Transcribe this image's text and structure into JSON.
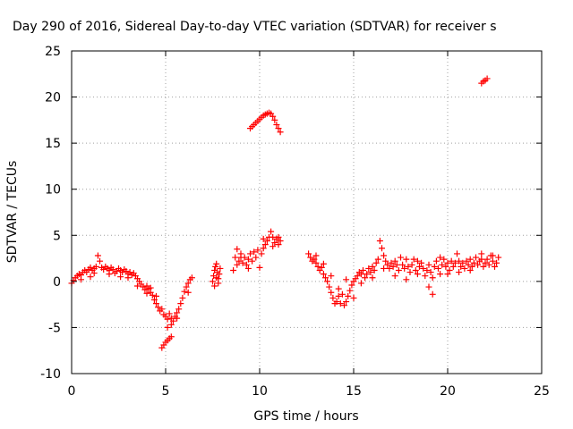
{
  "chart_data": {
    "type": "scatter",
    "title": "Day 290 of 2016, Sidereal Day-to-day VTEC variation (SDTVAR) for receiver s",
    "xlabel": "GPS time / hours",
    "ylabel": "SDTVAR / TECUs",
    "xlim": [
      0,
      25
    ],
    "ylim": [
      -10,
      25
    ],
    "xticks": [
      "0",
      "5",
      "10",
      "15",
      "20",
      "25"
    ],
    "yticks": [
      "-10",
      "-5",
      "0",
      "5",
      "10",
      "15",
      "20",
      "25"
    ],
    "grid": true,
    "legend": "none",
    "marker": "+",
    "color": "#ff0000",
    "series": [
      {
        "points": [
          [
            0.0,
            -0.2
          ],
          [
            0.1,
            0.1
          ],
          [
            0.2,
            0.4
          ],
          [
            0.3,
            0.6
          ],
          [
            0.4,
            0.8
          ],
          [
            0.5,
            0.7
          ],
          [
            0.6,
            1.0
          ],
          [
            0.7,
            1.2
          ],
          [
            0.8,
            1.0
          ],
          [
            0.9,
            1.3
          ],
          [
            1.0,
            1.5
          ],
          [
            1.1,
            1.2
          ],
          [
            1.2,
            1.4
          ],
          [
            1.3,
            1.6
          ],
          [
            1.4,
            2.8
          ],
          [
            1.5,
            2.2
          ],
          [
            1.6,
            1.5
          ],
          [
            1.7,
            1.3
          ],
          [
            1.8,
            1.6
          ],
          [
            1.9,
            1.4
          ],
          [
            2.0,
            1.2
          ],
          [
            2.1,
            1.5
          ],
          [
            2.2,
            1.3
          ],
          [
            2.3,
            0.9
          ],
          [
            2.4,
            1.1
          ],
          [
            2.5,
            1.4
          ],
          [
            2.6,
            1.2
          ],
          [
            2.7,
            1.0
          ],
          [
            2.8,
            1.3
          ],
          [
            2.9,
            1.1
          ],
          [
            3.0,
            0.8
          ],
          [
            3.1,
            1.0
          ],
          [
            3.2,
            0.7
          ],
          [
            3.3,
            0.9
          ],
          [
            3.4,
            0.6
          ],
          [
            3.5,
            0.3
          ],
          [
            3.6,
            0.0
          ],
          [
            3.7,
            -0.3
          ],
          [
            3.8,
            -0.6
          ],
          [
            3.9,
            -0.9
          ],
          [
            4.0,
            -0.5
          ],
          [
            4.1,
            -0.8
          ],
          [
            4.2,
            -1.2
          ],
          [
            4.3,
            -1.5
          ],
          [
            4.4,
            -2.0
          ],
          [
            4.5,
            -2.4
          ],
          [
            4.6,
            -2.8
          ],
          [
            4.7,
            -3.2
          ],
          [
            4.8,
            -3.0
          ],
          [
            4.9,
            -3.6
          ],
          [
            5.0,
            -3.8
          ],
          [
            5.1,
            -4.1
          ],
          [
            5.2,
            -3.5
          ],
          [
            5.3,
            -4.0
          ],
          [
            5.4,
            -4.3
          ],
          [
            5.5,
            -3.8
          ],
          [
            5.6,
            -3.4
          ],
          [
            5.7,
            -3.0
          ],
          [
            5.8,
            -2.4
          ],
          [
            5.9,
            -1.8
          ],
          [
            6.0,
            -1.1
          ],
          [
            6.1,
            -0.6
          ],
          [
            6.2,
            -0.2
          ],
          [
            6.3,
            0.2
          ],
          [
            6.4,
            0.4
          ],
          [
            5.1,
            -5.0
          ],
          [
            5.3,
            -4.7
          ],
          [
            0.5,
            0.2
          ],
          [
            1.0,
            0.5
          ],
          [
            2.0,
            0.8
          ],
          [
            3.0,
            0.4
          ],
          [
            4.2,
            -0.7
          ],
          [
            4.5,
            -1.6
          ],
          [
            1.2,
            0.9
          ],
          [
            2.6,
            0.5
          ],
          [
            3.5,
            -0.5
          ],
          [
            4.0,
            -1.3
          ],
          [
            5.6,
            -4.0
          ],
          [
            6.2,
            -1.2
          ]
        ]
      },
      {
        "points": [
          [
            4.8,
            -7.2
          ],
          [
            4.9,
            -6.9
          ],
          [
            5.0,
            -6.6
          ],
          [
            5.1,
            -6.4
          ],
          [
            5.2,
            -6.2
          ],
          [
            5.3,
            -6.0
          ]
        ]
      },
      {
        "points": [
          [
            7.5,
            0.0
          ],
          [
            7.55,
            0.6
          ],
          [
            7.6,
            1.2
          ],
          [
            7.65,
            1.6
          ],
          [
            7.7,
            0.4
          ],
          [
            7.75,
            1.0
          ],
          [
            7.8,
            -0.2
          ],
          [
            7.85,
            0.8
          ],
          [
            7.9,
            1.4
          ],
          [
            7.6,
            -0.5
          ],
          [
            7.7,
            1.9
          ],
          [
            7.8,
            0.3
          ]
        ]
      },
      {
        "points": [
          [
            8.6,
            1.2
          ],
          [
            8.7,
            2.6
          ],
          [
            8.8,
            3.5
          ],
          [
            8.9,
            2.2
          ],
          [
            9.0,
            3.0
          ],
          [
            9.1,
            2.0
          ],
          [
            9.2,
            2.6
          ],
          [
            9.3,
            1.8
          ],
          [
            9.4,
            2.4
          ],
          [
            9.5,
            3.0
          ],
          [
            9.6,
            2.2
          ],
          [
            9.7,
            3.2
          ],
          [
            9.8,
            2.6
          ],
          [
            9.9,
            3.4
          ],
          [
            10.0,
            1.5
          ],
          [
            10.1,
            3.0
          ],
          [
            10.2,
            3.6
          ],
          [
            10.3,
            4.0
          ],
          [
            10.4,
            4.4
          ],
          [
            10.5,
            4.8
          ],
          [
            10.6,
            5.4
          ],
          [
            10.7,
            4.8
          ],
          [
            10.8,
            4.2
          ],
          [
            10.9,
            4.6
          ],
          [
            11.0,
            4.0
          ],
          [
            11.1,
            4.4
          ],
          [
            8.8,
            1.8
          ],
          [
            9.0,
            2.6
          ],
          [
            9.4,
            1.4
          ],
          [
            10.2,
            4.6
          ],
          [
            10.7,
            3.8
          ],
          [
            11.0,
            4.8
          ]
        ]
      },
      {
        "points": [
          [
            9.5,
            16.6
          ],
          [
            9.6,
            16.8
          ],
          [
            9.7,
            17.0
          ],
          [
            9.8,
            17.2
          ],
          [
            9.9,
            17.4
          ],
          [
            10.0,
            17.6
          ],
          [
            10.1,
            17.8
          ],
          [
            10.2,
            18.0
          ],
          [
            10.3,
            18.1
          ],
          [
            10.4,
            18.2
          ],
          [
            10.5,
            18.3
          ],
          [
            10.6,
            18.2
          ],
          [
            10.7,
            17.9
          ],
          [
            10.8,
            17.5
          ],
          [
            10.9,
            17.0
          ],
          [
            11.0,
            16.6
          ],
          [
            11.1,
            16.2
          ]
        ]
      },
      {
        "points": [
          [
            21.8,
            21.5
          ],
          [
            21.9,
            21.7
          ],
          [
            22.0,
            21.8
          ],
          [
            22.1,
            22.0
          ]
        ]
      },
      {
        "points": [
          [
            12.6,
            3.0
          ],
          [
            12.7,
            2.6
          ],
          [
            12.8,
            2.2
          ],
          [
            12.9,
            2.4
          ],
          [
            13.0,
            2.0
          ],
          [
            13.1,
            1.6
          ],
          [
            13.2,
            1.2
          ],
          [
            13.3,
            1.5
          ],
          [
            13.4,
            0.8
          ],
          [
            13.5,
            0.4
          ],
          [
            13.6,
            0.0
          ],
          [
            13.7,
            -0.6
          ],
          [
            13.8,
            -1.2
          ],
          [
            13.9,
            -1.8
          ],
          [
            14.0,
            -2.4
          ],
          [
            14.1,
            -2.2
          ],
          [
            14.2,
            -1.6
          ],
          [
            14.3,
            -2.4
          ],
          [
            14.4,
            -1.4
          ],
          [
            14.5,
            -2.6
          ],
          [
            14.6,
            -2.2
          ],
          [
            14.7,
            -1.6
          ],
          [
            14.8,
            -1.0
          ],
          [
            14.9,
            -0.4
          ],
          [
            15.0,
            0.0
          ],
          [
            15.1,
            0.3
          ],
          [
            15.2,
            0.6
          ],
          [
            15.3,
            1.0
          ],
          [
            15.4,
            0.8
          ],
          [
            15.5,
            1.2
          ],
          [
            15.6,
            0.4
          ],
          [
            15.7,
            0.8
          ],
          [
            15.8,
            1.4
          ],
          [
            15.9,
            1.0
          ],
          [
            16.0,
            1.6
          ],
          [
            16.1,
            1.2
          ],
          [
            16.2,
            2.0
          ],
          [
            16.3,
            2.4
          ],
          [
            16.4,
            4.4
          ],
          [
            16.5,
            3.6
          ],
          [
            16.6,
            2.8
          ],
          [
            16.7,
            2.2
          ],
          [
            16.8,
            1.8
          ],
          [
            16.9,
            1.4
          ],
          [
            17.0,
            2.0
          ],
          [
            17.1,
            1.6
          ],
          [
            17.2,
            2.2
          ],
          [
            17.3,
            1.8
          ],
          [
            17.4,
            1.2
          ],
          [
            17.5,
            2.6
          ],
          [
            17.6,
            1.8
          ],
          [
            17.7,
            1.4
          ],
          [
            17.8,
            2.4
          ],
          [
            17.9,
            1.6
          ],
          [
            18.0,
            1.0
          ],
          [
            18.1,
            1.8
          ],
          [
            18.2,
            2.4
          ],
          [
            18.3,
            1.2
          ],
          [
            18.4,
            0.8
          ],
          [
            18.5,
            1.6
          ],
          [
            18.6,
            2.0
          ],
          [
            18.7,
            1.4
          ],
          [
            18.8,
            0.6
          ],
          [
            18.9,
            1.2
          ],
          [
            19.0,
            1.8
          ],
          [
            19.1,
            1.0
          ],
          [
            19.2,
            0.4
          ],
          [
            19.3,
            1.6
          ],
          [
            19.4,
            2.2
          ],
          [
            19.5,
            1.4
          ],
          [
            19.6,
            0.8
          ],
          [
            19.7,
            1.8
          ],
          [
            19.8,
            2.4
          ],
          [
            19.9,
            1.6
          ],
          [
            20.0,
            2.0
          ],
          [
            20.1,
            1.2
          ],
          [
            20.2,
            2.2
          ],
          [
            20.3,
            1.6
          ],
          [
            20.4,
            2.0
          ],
          [
            20.5,
            3.0
          ],
          [
            20.6,
            2.2
          ],
          [
            20.7,
            1.6
          ],
          [
            20.8,
            2.0
          ],
          [
            20.9,
            1.4
          ],
          [
            21.0,
            2.2
          ],
          [
            21.1,
            1.8
          ],
          [
            21.2,
            2.4
          ],
          [
            21.3,
            1.6
          ],
          [
            21.4,
            2.0
          ],
          [
            21.5,
            2.6
          ],
          [
            21.6,
            1.8
          ],
          [
            21.7,
            2.2
          ],
          [
            21.8,
            2.4
          ],
          [
            21.9,
            1.6
          ],
          [
            22.0,
            2.0
          ],
          [
            22.1,
            2.4
          ],
          [
            22.2,
            1.8
          ],
          [
            22.3,
            2.8
          ],
          [
            22.4,
            2.2
          ],
          [
            22.5,
            1.6
          ],
          [
            22.6,
            2.0
          ],
          [
            22.7,
            2.6
          ],
          [
            13.0,
            2.8
          ],
          [
            13.4,
            1.9
          ],
          [
            13.8,
            0.6
          ],
          [
            14.2,
            -0.8
          ],
          [
            14.6,
            0.2
          ],
          [
            15.0,
            -1.8
          ],
          [
            15.4,
            -0.2
          ],
          [
            16.0,
            0.4
          ],
          [
            16.6,
            1.4
          ],
          [
            17.2,
            0.6
          ],
          [
            17.8,
            0.2
          ],
          [
            18.4,
            2.2
          ],
          [
            19.0,
            -0.6
          ],
          [
            19.2,
            -1.4
          ],
          [
            19.6,
            2.6
          ],
          [
            20.0,
            0.8
          ],
          [
            20.6,
            1.0
          ],
          [
            21.2,
            1.2
          ],
          [
            21.8,
            3.0
          ],
          [
            22.4,
            2.8
          ]
        ]
      }
    ]
  }
}
